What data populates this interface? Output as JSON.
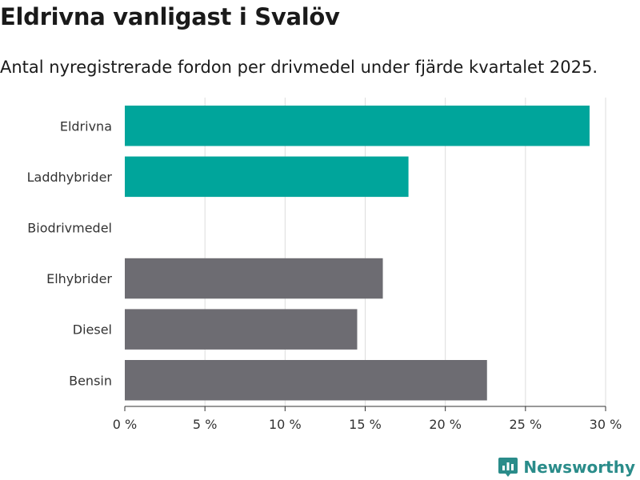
{
  "header": {
    "title": "Eldrivna vanligast i Svalöv",
    "subtitle": "Antal nyregistrerade fordon per drivmedel under fjärde kvartalet 2025."
  },
  "brand": {
    "name": "Newsworthy",
    "icon": "newsworthy-logo-icon",
    "color": "#2a8c8a"
  },
  "colors": {
    "highlight": "#00a59b",
    "neutral": "#6d6c72",
    "grid": "#dddddd",
    "axis": "#333333"
  },
  "chart_data": {
    "type": "bar",
    "orientation": "horizontal",
    "categories": [
      "Eldrivna",
      "Laddhybrider",
      "Biodrivmedel",
      "Elhybrider",
      "Diesel",
      "Bensin"
    ],
    "values": [
      29.0,
      17.7,
      0,
      16.1,
      14.5,
      22.6
    ],
    "value_unit": "%",
    "highlighted": [
      true,
      true,
      true,
      false,
      false,
      false
    ],
    "xlim": [
      0,
      30
    ],
    "xticks": [
      0,
      5,
      10,
      15,
      20,
      25,
      30
    ],
    "xtick_labels": [
      "0 %",
      "5 %",
      "10 %",
      "15 %",
      "20 %",
      "25 %",
      "30 %"
    ],
    "grid": true
  }
}
